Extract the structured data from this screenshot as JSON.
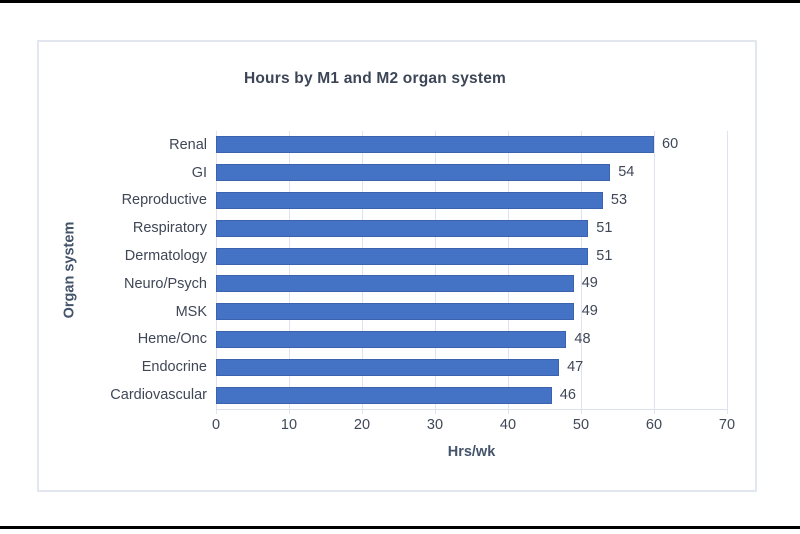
{
  "page": {
    "top_rule_color": "#000000",
    "bottom_rule_color": "#000000",
    "background": "#ffffff",
    "chart_border_color": "#e2e6ee"
  },
  "chart_data": {
    "type": "bar",
    "orientation": "horizontal",
    "title": "Hours by M1 and M2 organ system",
    "xlabel": "Hrs/wk",
    "ylabel": "Organ system",
    "categories": [
      "Renal",
      "GI",
      "Reproductive",
      "Respiratory",
      "Dermatology",
      "Neuro/Psych",
      "MSK",
      "Heme/Onc",
      "Endocrine",
      "Cardiovascular"
    ],
    "values": [
      60,
      54,
      53,
      51,
      51,
      49,
      49,
      48,
      47,
      46
    ],
    "data_labels": [
      60,
      54,
      53,
      51,
      51,
      49,
      49,
      48,
      47,
      46
    ],
    "xlim": [
      0,
      70
    ],
    "xticks": [
      0,
      10,
      20,
      30,
      40,
      50,
      60,
      70
    ],
    "grid": true,
    "legend": "none",
    "bar_color": "#4472C4",
    "bar_border_color": "#3a62ae",
    "gridline_color": "#dde4f0",
    "label_color": "#3f4757",
    "axis_title_color": "#44546A",
    "title_color": "#3d4657"
  }
}
